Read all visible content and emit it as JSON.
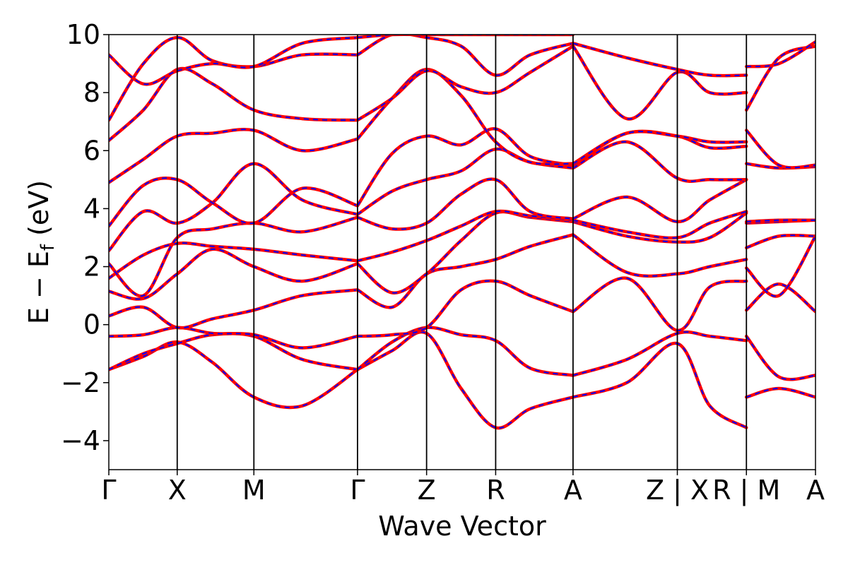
{
  "chart_data": {
    "type": "line",
    "title": "",
    "xlabel": "Wave Vector",
    "ylabel_main": "E − E",
    "ylabel_sub": "f",
    "ylabel_unit": " (eV)",
    "ylim": [
      -5,
      10
    ],
    "yticks": [
      -4,
      -2,
      0,
      2,
      4,
      6,
      8,
      10
    ],
    "ytick_labels": [
      "−4",
      "−2",
      "0",
      "2",
      "4",
      "6",
      "8",
      "10"
    ],
    "xlim": [
      0,
      10.23
    ],
    "kpoints": [
      {
        "label": "Γ",
        "x": 0.0
      },
      {
        "label": "X",
        "x": 0.99
      },
      {
        "label": "M",
        "x": 2.1
      },
      {
        "label": "Γ",
        "x": 3.6
      },
      {
        "label": "Z",
        "x": 4.6
      },
      {
        "label": "R",
        "x": 5.6
      },
      {
        "label": "A",
        "x": 6.72
      },
      {
        "label": "Z | X",
        "x": 8.23
      },
      {
        "label": "R | M",
        "x": 9.23
      },
      {
        "label": "A",
        "x": 10.23
      }
    ],
    "colors": {
      "solid": "#ff0000",
      "dashed": "#0000ff",
      "frame": "#000000"
    },
    "series": [
      {
        "name": "",
        "segments": [
          {
            "x": [
              0,
              0.5,
              0.99,
              1.5,
              2.1,
              2.8,
              3.6
            ],
            "y": [
              -1.55,
              -1.1,
              -0.6,
              -1.3,
              -2.5,
              -2.8,
              -1.55
            ]
          },
          {
            "x": [
              3.6,
              4.1,
              4.6,
              5.1,
              5.6,
              6.1,
              6.72
            ],
            "y": [
              -1.55,
              -0.9,
              -0.3,
              -2.2,
              -3.55,
              -2.9,
              -2.5
            ]
          },
          {
            "x": [
              6.72,
              7.5,
              8.23,
              8.7,
              9.23
            ],
            "y": [
              -2.5,
              -2.0,
              -0.65,
              -2.8,
              -3.55
            ]
          },
          {
            "x": [
              9.23,
              9.7,
              10.23
            ],
            "y": [
              -2.5,
              -2.2,
              -2.5
            ]
          }
        ]
      },
      {
        "name": "",
        "segments": [
          {
            "x": [
              0,
              0.5,
              0.99,
              1.5,
              2.1,
              2.8,
              3.6
            ],
            "y": [
              -1.55,
              -1.0,
              -0.65,
              -0.35,
              -0.4,
              -1.2,
              -1.55
            ]
          },
          {
            "x": [
              3.6,
              4.1,
              4.6,
              5.1,
              5.6,
              6.1,
              6.72
            ],
            "y": [
              -1.55,
              -0.6,
              -0.1,
              -0.35,
              -0.55,
              -1.5,
              -1.75
            ]
          },
          {
            "x": [
              6.72,
              7.5,
              8.23,
              8.7,
              9.23
            ],
            "y": [
              -1.75,
              -1.2,
              -0.3,
              -0.4,
              -0.55
            ]
          },
          {
            "x": [
              9.23,
              9.7,
              10.23
            ],
            "y": [
              -0.4,
              -1.8,
              -1.75
            ]
          }
        ]
      },
      {
        "name": "",
        "segments": [
          {
            "x": [
              0,
              0.5,
              0.99,
              1.5,
              2.1,
              2.8,
              3.6
            ],
            "y": [
              -0.4,
              -0.35,
              -0.1,
              -0.3,
              -0.35,
              -0.8,
              -0.4
            ]
          },
          {
            "x": [
              3.6,
              4.1,
              4.6,
              5.1,
              5.6,
              6.1,
              6.72
            ],
            "y": [
              -0.4,
              -0.35,
              -0.1,
              1.2,
              1.5,
              1.0,
              0.45
            ]
          },
          {
            "x": [
              6.72,
              7.5,
              8.23,
              8.7,
              9.23
            ],
            "y": [
              0.45,
              1.6,
              -0.2,
              1.3,
              1.5
            ]
          },
          {
            "x": [
              9.23,
              9.7,
              10.23
            ],
            "y": [
              0.5,
              1.4,
              0.45
            ]
          }
        ]
      },
      {
        "name": "",
        "segments": [
          {
            "x": [
              0,
              0.5,
              0.99,
              1.5,
              2.1,
              2.8,
              3.6
            ],
            "y": [
              0.3,
              0.6,
              -0.1,
              0.2,
              0.5,
              1.0,
              1.2
            ]
          },
          {
            "x": [
              3.6,
              4.1,
              4.6,
              5.1,
              5.6,
              6.1,
              6.72
            ],
            "y": [
              1.2,
              0.6,
              1.75,
              2.0,
              2.25,
              2.7,
              3.1
            ]
          },
          {
            "x": [
              6.72,
              7.5,
              8.23,
              8.7,
              9.23
            ],
            "y": [
              3.1,
              1.8,
              1.75,
              2.0,
              2.25
            ]
          },
          {
            "x": [
              9.23,
              9.7,
              10.23
            ],
            "y": [
              1.95,
              1.0,
              3.05
            ]
          }
        ]
      },
      {
        "name": "",
        "segments": [
          {
            "x": [
              0,
              0.5,
              0.99,
              1.5,
              2.1,
              2.8,
              3.6
            ],
            "y": [
              1.15,
              0.9,
              1.75,
              2.6,
              2.0,
              1.5,
              2.1
            ]
          },
          {
            "x": [
              3.6,
              4.1,
              4.6,
              5.1,
              5.6,
              6.1,
              6.72
            ],
            "y": [
              2.1,
              1.1,
              1.75,
              2.9,
              3.85,
              3.7,
              3.55
            ]
          },
          {
            "x": [
              6.72,
              7.5,
              8.23,
              8.7,
              9.23
            ],
            "y": [
              3.55,
              3.05,
              2.85,
              3.0,
              3.85
            ]
          },
          {
            "x": [
              9.23,
              9.7,
              10.23
            ],
            "y": [
              2.65,
              3.05,
              3.05
            ]
          }
        ]
      },
      {
        "name": "",
        "segments": [
          {
            "x": [
              0,
              0.5,
              0.99,
              1.5,
              2.1,
              2.8,
              3.6
            ],
            "y": [
              1.6,
              2.4,
              2.8,
              2.7,
              2.6,
              2.4,
              2.2
            ]
          },
          {
            "x": [
              3.6,
              4.1,
              4.6,
              5.1,
              5.6,
              6.1,
              6.72
            ],
            "y": [
              2.2,
              2.5,
              2.9,
              3.4,
              3.9,
              3.75,
              3.6
            ]
          },
          {
            "x": [
              6.72,
              7.5,
              8.23,
              8.7,
              9.23
            ],
            "y": [
              3.6,
              3.2,
              3.0,
              3.5,
              3.9
            ]
          },
          {
            "x": [
              9.23,
              9.7,
              10.23
            ],
            "y": [
              3.5,
              3.55,
              3.6
            ]
          }
        ]
      },
      {
        "name": "",
        "segments": [
          {
            "x": [
              0,
              0.5,
              0.99,
              1.5,
              2.1,
              2.8,
              3.6
            ],
            "y": [
              2.1,
              1.0,
              3.0,
              3.3,
              3.5,
              3.2,
              3.7
            ]
          },
          {
            "x": [
              3.6,
              4.1,
              4.6,
              5.1,
              5.6,
              6.1,
              6.72
            ],
            "y": [
              3.7,
              3.3,
              3.5,
              4.5,
              5.0,
              3.9,
              3.65
            ]
          },
          {
            "x": [
              6.72,
              7.5,
              8.23,
              8.7,
              9.23
            ],
            "y": [
              3.65,
              4.4,
              3.55,
              4.3,
              5.0
            ]
          },
          {
            "x": [
              9.23,
              9.7,
              10.23
            ],
            "y": [
              3.55,
              3.6,
              3.6
            ]
          }
        ]
      },
      {
        "name": "",
        "segments": [
          {
            "x": [
              0,
              0.5,
              0.99,
              1.5,
              2.1,
              2.8,
              3.6
            ],
            "y": [
              2.55,
              3.9,
              3.5,
              4.2,
              5.55,
              4.3,
              3.8
            ]
          },
          {
            "x": [
              3.6,
              4.1,
              4.6,
              5.1,
              5.6,
              6.1,
              6.72
            ],
            "y": [
              3.8,
              4.6,
              5.0,
              5.3,
              6.05,
              5.6,
              5.4
            ]
          },
          {
            "x": [
              6.72,
              7.5,
              8.23,
              8.7,
              9.23
            ],
            "y": [
              5.4,
              6.3,
              5.05,
              5.0,
              5.0
            ]
          },
          {
            "x": [
              9.23,
              9.7,
              10.23
            ],
            "y": [
              5.55,
              5.4,
              5.45
            ]
          }
        ]
      },
      {
        "name": "",
        "segments": [
          {
            "x": [
              0,
              0.5,
              0.99,
              1.5,
              2.1,
              2.8,
              3.6
            ],
            "y": [
              3.4,
              4.8,
              5.0,
              4.2,
              3.5,
              4.7,
              4.1
            ]
          },
          {
            "x": [
              3.6,
              4.1,
              4.6,
              5.1,
              5.6,
              6.1,
              6.72
            ],
            "y": [
              4.1,
              5.9,
              6.5,
              6.2,
              6.75,
              5.8,
              5.5
            ]
          },
          {
            "x": [
              6.72,
              7.5,
              8.23,
              8.7,
              9.23
            ],
            "y": [
              5.5,
              6.6,
              6.5,
              6.1,
              6.15
            ]
          },
          {
            "x": [
              9.23,
              9.7,
              10.23
            ],
            "y": [
              6.7,
              5.5,
              5.5
            ]
          }
        ]
      },
      {
        "name": "",
        "segments": [
          {
            "x": [
              0,
              0.5,
              0.99,
              1.5,
              2.1,
              2.8,
              3.6
            ],
            "y": [
              4.9,
              5.7,
              6.5,
              6.6,
              6.7,
              6.0,
              6.4
            ]
          },
          {
            "x": [
              3.6,
              4.1,
              4.6,
              5.1,
              5.6,
              6.1,
              6.72
            ],
            "y": [
              6.4,
              7.8,
              8.8,
              7.9,
              6.3,
              5.6,
              5.55
            ]
          },
          {
            "x": [
              6.72,
              7.5,
              8.23,
              8.7,
              9.23
            ],
            "y": [
              5.55,
              6.6,
              6.5,
              6.3,
              6.3
            ]
          }
        ]
      },
      {
        "name": "",
        "segments": [
          {
            "x": [
              0,
              0.5,
              0.99,
              1.5,
              2.1,
              2.8,
              3.6
            ],
            "y": [
              6.35,
              7.4,
              8.8,
              8.3,
              7.4,
              7.1,
              7.05
            ]
          },
          {
            "x": [
              3.6,
              4.1,
              4.6,
              5.1,
              5.6,
              6.1,
              6.72
            ],
            "y": [
              7.05,
              7.8,
              8.75,
              8.2,
              8.0,
              8.7,
              9.6
            ]
          },
          {
            "x": [
              6.72,
              7.5,
              8.23,
              8.7,
              9.23
            ],
            "y": [
              9.6,
              7.1,
              8.7,
              8.0,
              8.0
            ]
          },
          {
            "x": [
              9.23,
              9.7,
              10.23
            ],
            "y": [
              7.4,
              9.2,
              9.6
            ]
          }
        ]
      },
      {
        "name": "",
        "segments": [
          {
            "x": [
              0,
              0.5,
              0.99,
              1.5,
              2.1,
              2.8,
              3.6
            ],
            "y": [
              7.05,
              9.0,
              9.9,
              9.1,
              8.9,
              9.3,
              9.3
            ]
          },
          {
            "x": [
              3.6,
              4.1,
              4.6,
              5.1,
              5.6,
              6.1,
              6.72
            ],
            "y": [
              9.3,
              10.0,
              9.9,
              9.6,
              8.6,
              9.3,
              9.7
            ]
          },
          {
            "x": [
              6.72,
              7.5,
              8.23,
              8.7,
              9.23
            ],
            "y": [
              9.7,
              9.2,
              8.8,
              8.6,
              8.6
            ]
          },
          {
            "x": [
              9.23,
              9.7,
              10.23
            ],
            "y": [
              8.9,
              9.0,
              9.75
            ]
          }
        ]
      },
      {
        "name": "",
        "segments": [
          {
            "x": [
              0,
              0.5,
              0.99,
              1.5,
              2.1,
              2.8,
              3.6
            ],
            "y": [
              9.3,
              8.3,
              8.75,
              9.0,
              8.9,
              9.7,
              9.9
            ]
          },
          {
            "x": [
              3.6,
              4.1,
              4.6,
              5.1,
              5.6,
              6.1,
              6.72
            ],
            "y": [
              9.9,
              10.0,
              10.0,
              10.0,
              10.0,
              10.0,
              10.0
            ]
          }
        ]
      }
    ]
  }
}
